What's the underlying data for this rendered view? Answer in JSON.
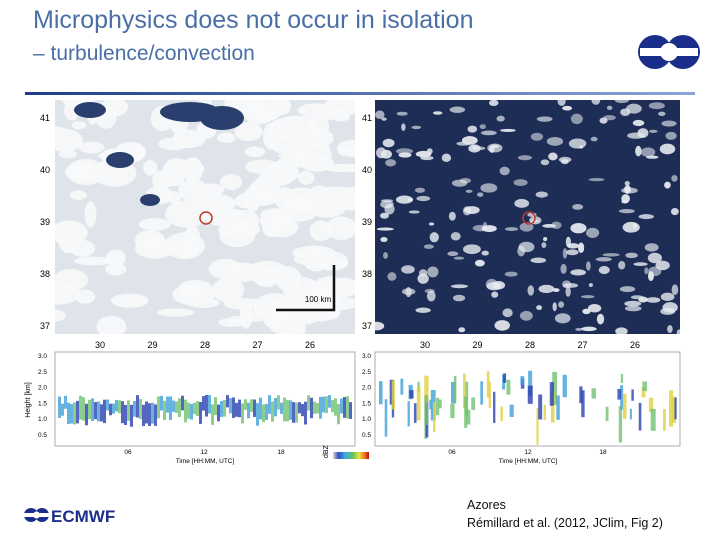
{
  "header": {
    "title": "Microphysics does not occur in isolation",
    "subtitle": "– turbulence/convection"
  },
  "panels": [
    {
      "lat_ticks": [
        "41",
        "40",
        "39",
        "38",
        "37"
      ],
      "lon_ticks": [
        "30",
        "29",
        "28",
        "27",
        "26"
      ],
      "scale_label": "100 km"
    },
    {
      "lat_ticks": [
        "41",
        "40",
        "39",
        "38",
        "37"
      ],
      "lon_ticks": [
        "30",
        "29",
        "28",
        "27",
        "26"
      ]
    }
  ],
  "radar": [
    {
      "y_label": "Height [km]",
      "y_ticks": [
        "3.0",
        "2.5",
        "2.0",
        "1.5",
        "1.0",
        "0.5"
      ],
      "x_ticks": [
        "06",
        "12",
        "18"
      ],
      "x_label": "Time [HH:MM, UTC]"
    },
    {
      "y_ticks": [
        "3.0",
        "2.5",
        "2.0",
        "1.5",
        "1.0",
        "0.5"
      ],
      "x_ticks": [
        "06",
        "12",
        "18"
      ],
      "x_label": "Time [HH:MM, UTC]"
    }
  ],
  "colorbar": {
    "label": "dBZ"
  },
  "footer": {
    "logo": "ECMWF",
    "caption": [
      "Azores",
      "Rémillard et al. (2012, JClim, Fig 2)"
    ]
  }
}
